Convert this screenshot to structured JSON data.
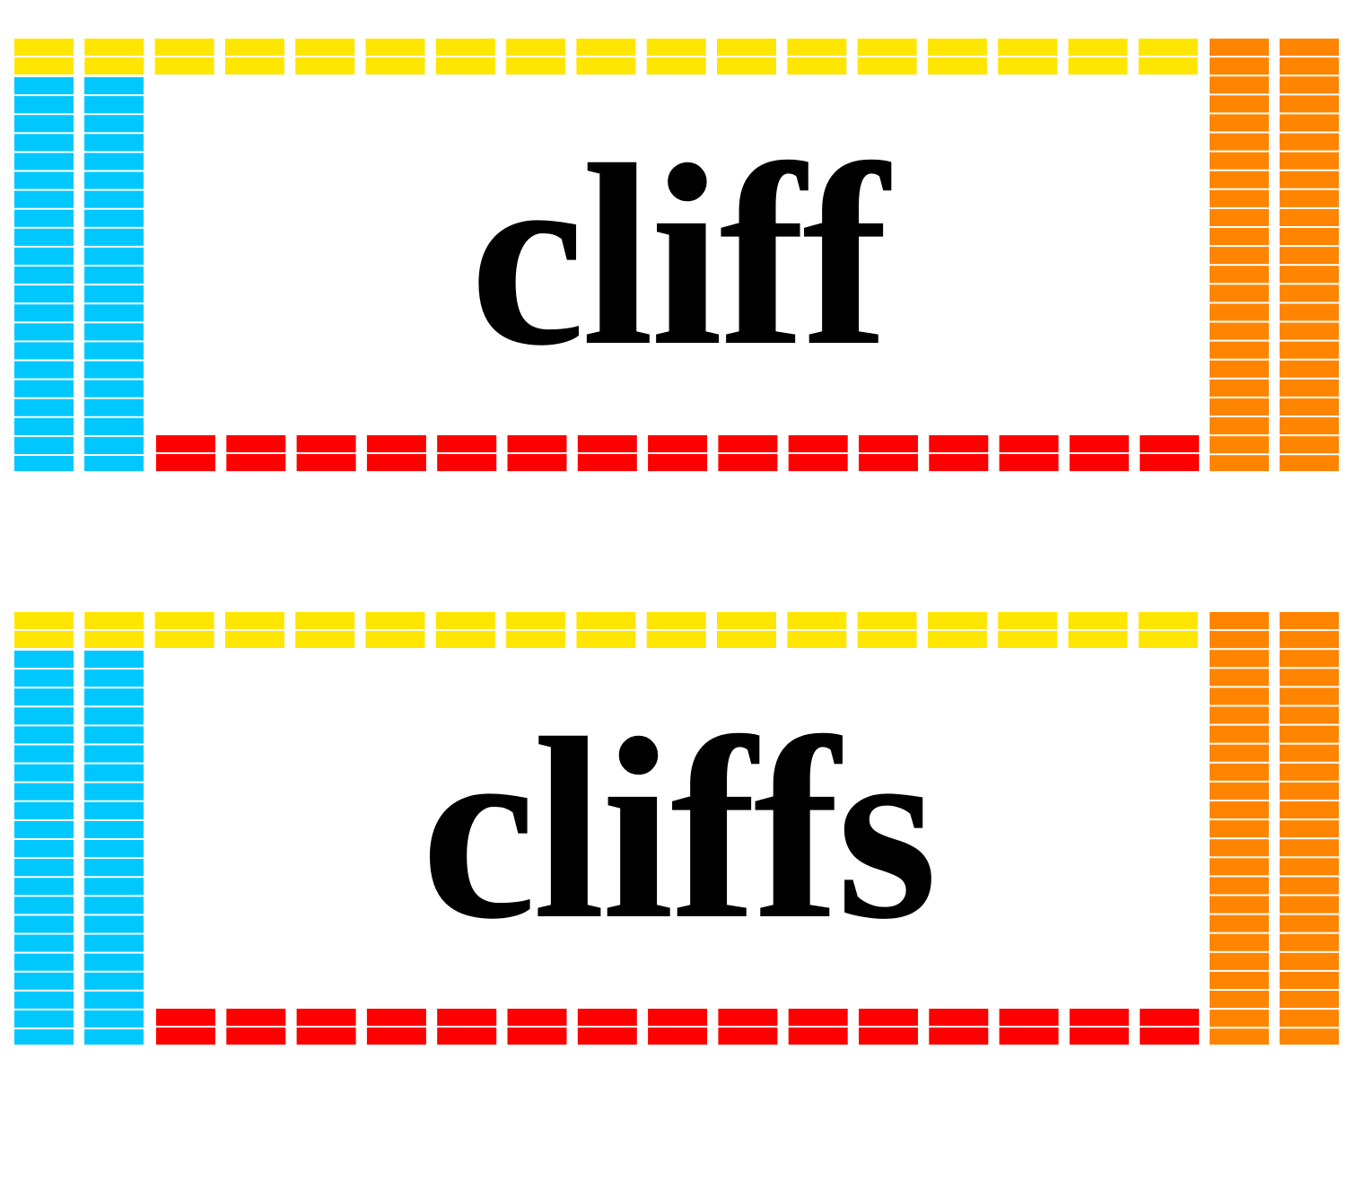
{
  "cards": [
    {
      "word": "cliff"
    },
    {
      "word": "cliffs"
    }
  ],
  "colors": {
    "top": "#FFE600",
    "left": "#00C8FF",
    "right": "#FF8500",
    "bottom": "#FF0000",
    "background": "#FFFFFF",
    "text": "#000000"
  }
}
